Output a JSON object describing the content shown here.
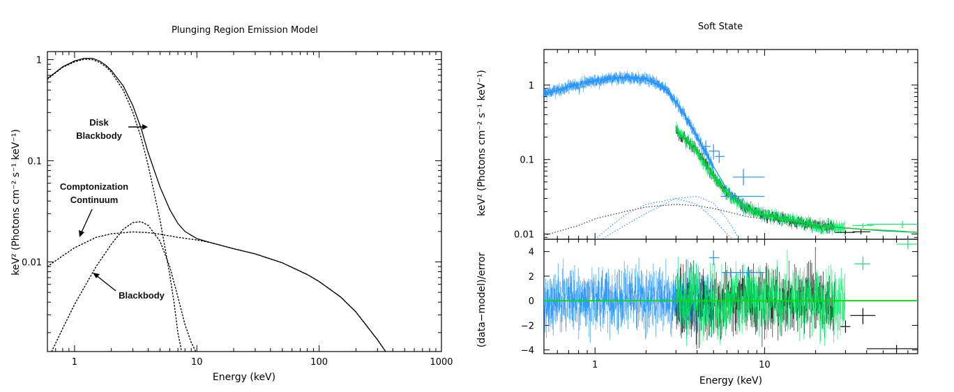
{
  "chart_data": [
    {
      "type": "line",
      "title": "Plunging Region Emission Model",
      "xlabel": "Energy (keV)",
      "ylabel": "keV² (Photons cm⁻² s⁻¹ keV⁻¹)",
      "xscale": "log",
      "yscale": "log",
      "xlim": [
        0.6,
        1000
      ],
      "ylim": [
        0.0013,
        1.2
      ],
      "xticks": [
        {
          "v": 1,
          "label": "1"
        },
        {
          "v": 10,
          "label": "10"
        },
        {
          "v": 100,
          "label": "100"
        },
        {
          "v": 1000,
          "label": "1000"
        }
      ],
      "yticks": [
        {
          "v": 1,
          "label": "1"
        },
        {
          "v": 0.1,
          "label": "0.1"
        },
        {
          "v": 0.01,
          "label": "0.01"
        }
      ],
      "series": [
        {
          "style": "solid",
          "x": [
            0.6,
            0.7,
            0.8,
            1.0,
            1.2,
            1.4,
            1.6,
            1.8,
            2.0,
            2.5,
            3.0,
            3.5,
            4.0,
            5.0,
            6.0,
            7.0,
            8.0,
            10,
            13,
            20,
            30,
            50,
            80,
            100,
            150,
            200,
            300,
            350
          ],
          "y": [
            0.65,
            0.75,
            0.85,
            0.97,
            1.03,
            1.03,
            0.97,
            0.88,
            0.78,
            0.55,
            0.35,
            0.21,
            0.12,
            0.055,
            0.033,
            0.024,
            0.02,
            0.017,
            0.0155,
            0.0135,
            0.012,
            0.0098,
            0.0075,
            0.0064,
            0.0045,
            0.0032,
            0.0017,
            0.0013
          ]
        },
        {
          "style": "dotted",
          "x": [
            0.6,
            0.7,
            0.8,
            1.0,
            1.2,
            1.4,
            1.6,
            1.8,
            2.0,
            2.5,
            3.0,
            3.5,
            4.0,
            5.0,
            6.0,
            6.5,
            7.0,
            7.5
          ],
          "y": [
            0.64,
            0.74,
            0.84,
            0.95,
            1.01,
            1.0,
            0.94,
            0.85,
            0.75,
            0.5,
            0.3,
            0.17,
            0.09,
            0.026,
            0.0075,
            0.004,
            0.002,
            0.0013
          ]
        },
        {
          "style": "dotted",
          "x": [
            0.6,
            0.8,
            1.0,
            1.5,
            2.0,
            3.0,
            4.0,
            5.0,
            7.0,
            10,
            13,
            20,
            30,
            50,
            80,
            100,
            150,
            200,
            300,
            350
          ],
          "y": [
            0.009,
            0.0115,
            0.0138,
            0.0175,
            0.019,
            0.0198,
            0.0195,
            0.0188,
            0.0175,
            0.0165,
            0.0155,
            0.0135,
            0.012,
            0.0098,
            0.0075,
            0.0064,
            0.0045,
            0.0032,
            0.0017,
            0.0013
          ]
        },
        {
          "style": "dotted",
          "x": [
            0.65,
            0.8,
            1.0,
            1.5,
            2.0,
            2.5,
            3.0,
            3.5,
            4.0,
            5.0,
            6.0,
            7.0,
            8.0,
            9.0,
            9.8
          ],
          "y": [
            0.0013,
            0.0022,
            0.0038,
            0.009,
            0.015,
            0.021,
            0.0245,
            0.025,
            0.023,
            0.016,
            0.009,
            0.0045,
            0.0024,
            0.0016,
            0.0013
          ]
        }
      ],
      "annotations": [
        {
          "text": [
            "Disk",
            "Blackbody"
          ]
        },
        {
          "text": [
            "Comptonization",
            "Continuum"
          ]
        },
        {
          "text": [
            "Blackbody"
          ]
        }
      ]
    },
    {
      "type": "scatter",
      "title": "Soft State",
      "xlabel": "Energy (keV)",
      "ylabel_top": "keV² (Photons cm⁻² s⁻¹ keV⁻¹)",
      "ylabel_bottom": "(data−model)/error",
      "xscale": "log",
      "xlim": [
        0.5,
        80
      ],
      "top": {
        "yscale": "log",
        "ylim": [
          0.0085,
          3.0
        ],
        "yticks": [
          {
            "v": 1,
            "label": "1"
          },
          {
            "v": 0.1,
            "label": "0.1"
          },
          {
            "v": 0.01,
            "label": "0.01"
          }
        ],
        "model_green": {
          "x": [
            3,
            4,
            5,
            6,
            8,
            10,
            15,
            20,
            30,
            40,
            60,
            80
          ],
          "y": [
            0.25,
            0.13,
            0.06,
            0.035,
            0.022,
            0.018,
            0.015,
            0.013,
            0.012,
            0.0115,
            0.011,
            0.0105
          ]
        },
        "model_blue": {
          "x": [
            0.5,
            0.7,
            1.0,
            1.3,
            1.6,
            2.0,
            2.5,
            3.0,
            3.5,
            4.0,
            5.0,
            6.0,
            8.0,
            10,
            15,
            20,
            30,
            50,
            80
          ],
          "y": [
            0.75,
            0.95,
            1.15,
            1.25,
            1.28,
            1.2,
            0.95,
            0.6,
            0.35,
            0.2,
            0.08,
            0.04,
            0.022,
            0.018,
            0.015,
            0.013,
            0.012,
            0.011,
            0.0105
          ]
        },
        "components": [
          {
            "x": [
              0.5,
              0.8,
              1.0,
              1.5,
              2.0,
              3.0,
              4.0,
              5.0,
              6.0,
              7.0,
              8.0
            ],
            "y": [
              0.0032,
              0.0055,
              0.0075,
              0.013,
              0.019,
              0.03,
              0.032,
              0.026,
              0.016,
              0.009,
              0.005
            ]
          },
          {
            "x": [
              0.5,
              0.8,
              1.0,
              1.5,
              2.0,
              3.0,
              4.0,
              5.0,
              6.0,
              8.0,
              10,
              20,
              40,
              80
            ],
            "y": [
              0.0095,
              0.013,
              0.016,
              0.02,
              0.023,
              0.025,
              0.024,
              0.022,
              0.02,
              0.017,
              0.016,
              0.013,
              0.0115,
              0.0105
            ]
          },
          {
            "x": [
              1.0,
              1.2,
              1.5,
              2.0,
              3.0,
              4.0,
              5.0,
              6.0,
              6.5
            ],
            "y": [
              0.0085,
              0.012,
              0.018,
              0.025,
              0.03,
              0.025,
              0.016,
              0.01,
              0.0085
            ]
          }
        ],
        "blue_outliers": [
          {
            "x": 7.5,
            "y": 0.058,
            "xerr": [
              6.5,
              10
            ],
            "yerr": [
              0.045,
              0.075
            ]
          },
          {
            "x": 6.5,
            "y": 0.032,
            "xerr": [
              5.5,
              10
            ],
            "yerr": [
              0.03,
              0.034
            ]
          },
          {
            "x": 5.0,
            "y": 0.13,
            "xerr": [
              4.7,
              5.4
            ],
            "yerr": [
              0.1,
              0.16
            ]
          },
          {
            "x": 5.4,
            "y": 0.11,
            "xerr": [
              5.1,
              5.8
            ],
            "yerr": [
              0.09,
              0.13
            ]
          },
          {
            "x": 4.5,
            "y": 0.15,
            "xerr": [
              4.2,
              4.8
            ],
            "yerr": [
              0.12,
              0.18
            ]
          }
        ],
        "green_outliers": [
          {
            "x": 65,
            "y": 0.0135,
            "xerr": [
              40,
              80
            ],
            "yerr": [
              0.012,
              0.015
            ]
          },
          {
            "x": 38,
            "y": 0.013,
            "xerr": [
              33,
              44
            ],
            "yerr": [
              0.012,
              0.014
            ]
          }
        ],
        "black_outliers": [
          {
            "x": 30,
            "y": 0.0105,
            "xerr": [
              26,
              34
            ],
            "yerr": [
              0.0098,
              0.0112
            ]
          },
          {
            "x": 37,
            "y": 0.0107,
            "xerr": [
              33,
              42
            ],
            "yerr": [
              0.0099,
              0.0115
            ]
          }
        ]
      },
      "bottom": {
        "ylim": [
          -4.3,
          5.0
        ],
        "yticks": [
          {
            "v": 4,
            "label": "4"
          },
          {
            "v": 2,
            "label": "2"
          },
          {
            "v": 0,
            "label": "0"
          },
          {
            "v": -2,
            "label": "−2"
          },
          {
            "v": -4,
            "label": "−4"
          }
        ],
        "zero_line": 0,
        "outliers": [
          {
            "color": "green",
            "x": 38,
            "y": 3.0,
            "xerr": [
              34,
              42
            ],
            "yerr": [
              2.5,
              3.6
            ]
          },
          {
            "color": "green",
            "x": 70,
            "y": 4.6,
            "xerr": [
              60,
              80
            ],
            "yerr": [
              4.2,
              5.0
            ]
          },
          {
            "color": "black",
            "x": 38,
            "y": -1.2,
            "xerr": [
              32,
              45
            ],
            "yerr": [
              -1.9,
              -0.6
            ]
          },
          {
            "color": "black",
            "x": 60,
            "y": -3.9,
            "xerr": [
              40,
              80
            ],
            "yerr": [
              -4.2,
              -3.6
            ]
          },
          {
            "color": "black",
            "x": 30,
            "y": -2.1,
            "xerr": [
              28,
              32
            ],
            "yerr": [
              -2.6,
              -1.6
            ]
          },
          {
            "color": "blue",
            "x": 5.0,
            "y": 3.5,
            "xerr": [
              4.7,
              5.4
            ],
            "yerr": [
              2.9,
              4.1
            ]
          },
          {
            "color": "blue",
            "x": 8.0,
            "y": 2.3,
            "xerr": [
              6.5,
              10
            ],
            "yerr": [
              1.9,
              2.7
            ]
          },
          {
            "color": "blue",
            "x": 6.3,
            "y": 2.3,
            "xerr": [
              5.6,
              7.0
            ],
            "yerr": [
              1.9,
              2.7
            ]
          }
        ]
      },
      "xticks": [
        {
          "v": 1,
          "label": "1"
        },
        {
          "v": 10,
          "label": "10"
        }
      ],
      "colors": {
        "blue": "#1e90ff",
        "green": "#00ee66",
        "black": "#000000",
        "model": "#00dd00"
      }
    }
  ]
}
